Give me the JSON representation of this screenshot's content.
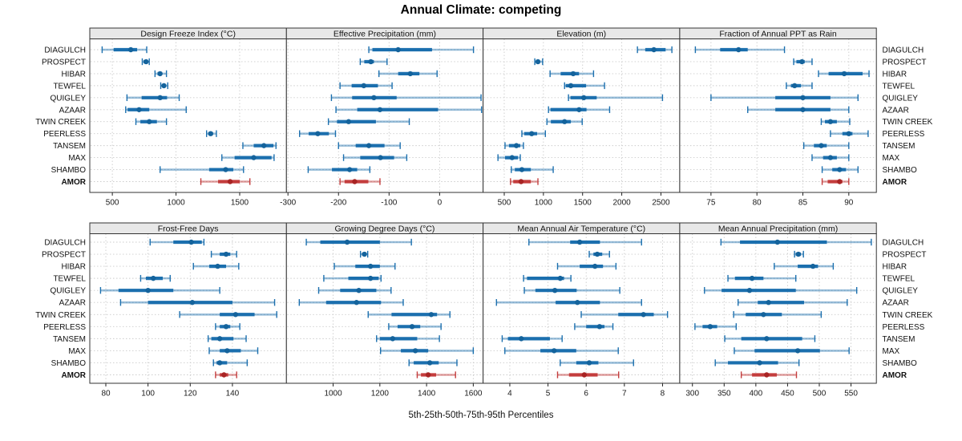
{
  "title": "Annual Climate: competing",
  "caption": "5th-25th-50th-75th-95th Percentiles",
  "chart_data": {
    "type": "percentile-dot-whisker",
    "layout": "2 rows x 4 columns, shared site axis",
    "percentiles": [
      5,
      25,
      50,
      75,
      95
    ],
    "sites": [
      "DIAGULCH",
      "PROSPECT",
      "HIBAR",
      "TEWFEL",
      "QUIGLEY",
      "AZAAR",
      "TWIN CREEK",
      "PEERLESS",
      "TANSEM",
      "MAX",
      "SHAMBO",
      "AMOR"
    ],
    "highlight_site": "AMOR",
    "colors": {
      "series": "#1b6fae",
      "series_band": "rgba(27,111,174,0.45)",
      "series_dot": "#14639c",
      "highlight": "#c43d3d",
      "highlight_band": "rgba(196,61,61,0.5)",
      "highlight_dot": "#a82424",
      "strip_bg": "#e8e8e8",
      "panel_border": "#333333",
      "gridline": "#cccccc"
    },
    "panels": [
      {
        "label": "Design Freeze Index (°C)",
        "row": "top",
        "ticks": [
          500,
          1000,
          1500
        ],
        "xlim": [
          323,
          1867
        ],
        "data": {
          "DIAGULCH": [
            420,
            510,
            645,
            695,
            770
          ],
          "PROSPECT": [
            735,
            745,
            765,
            775,
            790
          ],
          "HIBAR": [
            835,
            855,
            875,
            890,
            925
          ],
          "TEWFEL": [
            880,
            895,
            905,
            915,
            935
          ],
          "QUIGLEY": [
            615,
            730,
            875,
            930,
            1025
          ],
          "AZAAR": [
            605,
            620,
            710,
            790,
            1080
          ],
          "TWIN CREEK": [
            685,
            720,
            790,
            850,
            925
          ],
          "PEERLESS": [
            1240,
            1255,
            1272,
            1290,
            1317
          ],
          "TANSEM": [
            1525,
            1610,
            1690,
            1765,
            1785
          ],
          "MAX": [
            1360,
            1460,
            1610,
            1750,
            1770
          ],
          "SHAMBO": [
            875,
            1260,
            1390,
            1450,
            1530
          ],
          "AMOR": [
            1195,
            1330,
            1425,
            1500,
            1580
          ]
        }
      },
      {
        "label": "Effective Precipitation (mm)",
        "row": "top",
        "ticks": [
          -300,
          -200,
          -100,
          0
        ],
        "xlim": [
          -303,
          86
        ],
        "data": {
          "DIAGULCH": [
            -140,
            -133,
            -82,
            -15,
            67
          ],
          "PROSPECT": [
            -157,
            -149,
            -136,
            -130,
            -104
          ],
          "HIBAR": [
            -120,
            -82,
            -58,
            -40,
            -5
          ],
          "TEWFEL": [
            -197,
            -174,
            -150,
            -122,
            -94
          ],
          "QUIGLEY": [
            -214,
            -173,
            -130,
            -85,
            82
          ],
          "AZAAR": [
            -205,
            -163,
            -118,
            -3,
            83
          ],
          "TWIN CREEK": [
            -220,
            -203,
            -180,
            -126,
            -60
          ],
          "PEERLESS": [
            -277,
            -259,
            -241,
            -219,
            -206
          ],
          "TANSEM": [
            -200,
            -166,
            -140,
            -109,
            -78
          ],
          "MAX": [
            -190,
            -157,
            -117,
            -90,
            -65
          ],
          "SHAMBO": [
            -260,
            -213,
            -178,
            -163,
            -138
          ],
          "AMOR": [
            -197,
            -188,
            -168,
            -141,
            -118
          ]
        }
      },
      {
        "label": "Elevation (m)",
        "row": "top",
        "ticks": [
          500,
          1000,
          1500,
          2000,
          2500
        ],
        "xlim": [
          230,
          2740
        ],
        "data": {
          "DIAGULCH": [
            2200,
            2300,
            2410,
            2560,
            2640
          ],
          "PROSPECT": [
            890,
            905,
            930,
            950,
            990
          ],
          "HIBAR": [
            1085,
            1220,
            1380,
            1455,
            1640
          ],
          "TEWFEL": [
            1270,
            1285,
            1350,
            1545,
            1780
          ],
          "QUIGLEY": [
            1320,
            1345,
            1515,
            1680,
            2520
          ],
          "AZAAR": [
            1065,
            1090,
            1455,
            1550,
            1845
          ],
          "TWIN CREEK": [
            1045,
            1095,
            1270,
            1350,
            1495
          ],
          "PEERLESS": [
            725,
            755,
            850,
            920,
            1025
          ],
          "TANSEM": [
            510,
            560,
            655,
            705,
            745
          ],
          "MAX": [
            420,
            510,
            600,
            675,
            705
          ],
          "SHAMBO": [
            590,
            635,
            725,
            840,
            1125
          ],
          "AMOR": [
            580,
            615,
            715,
            840,
            930
          ]
        }
      },
      {
        "label": "Fraction of Annual PPT as Rain",
        "row": "top",
        "ticks": [
          75,
          80,
          85,
          90
        ],
        "xlim": [
          71.6,
          93
        ],
        "data": {
          "DIAGULCH": [
            73.3,
            76,
            78,
            79,
            83
          ],
          "PROSPECT": [
            84,
            84.3,
            84.9,
            85.2,
            86
          ],
          "HIBAR": [
            86.7,
            87.8,
            89.5,
            91.5,
            92.2
          ],
          "TEWFEL": [
            83.2,
            83.7,
            84.1,
            84.8,
            86
          ],
          "QUIGLEY": [
            75,
            82,
            85,
            88,
            91
          ],
          "AZAAR": [
            79,
            82,
            85,
            88,
            90
          ],
          "TWIN CREEK": [
            87,
            87.4,
            88,
            88.7,
            90.1
          ],
          "PEERLESS": [
            88,
            89.3,
            90,
            90.4,
            92.1
          ],
          "TANSEM": [
            85.1,
            86.2,
            87,
            87.6,
            90
          ],
          "MAX": [
            86,
            87.2,
            88,
            88.7,
            90
          ],
          "SHAMBO": [
            87.1,
            88.2,
            89,
            89.7,
            91
          ],
          "AMOR": [
            87.1,
            87.7,
            89,
            89.3,
            90
          ]
        }
      },
      {
        "label": "Frost-Free Days",
        "row": "bottom",
        "ticks": [
          80,
          100,
          120,
          140
        ],
        "xlim": [
          72.4,
          165.6
        ],
        "data": {
          "DIAGULCH": [
            101,
            112,
            120.5,
            125.5,
            126.5
          ],
          "PROSPECT": [
            130,
            134,
            137,
            139,
            142
          ],
          "HIBAR": [
            121.5,
            129,
            133,
            137,
            143
          ],
          "TEWFEL": [
            96.5,
            99,
            102.5,
            107,
            110.5
          ],
          "QUIGLEY": [
            77.5,
            86,
            100,
            112,
            134
          ],
          "AZAAR": [
            87,
            100,
            121,
            140,
            160
          ],
          "TWIN CREEK": [
            115,
            134,
            141.5,
            150.5,
            161
          ],
          "PEERLESS": [
            132,
            134,
            137,
            139,
            143.5
          ],
          "TANSEM": [
            128.5,
            130,
            134,
            140.5,
            146.5
          ],
          "MAX": [
            129,
            134,
            137.5,
            144,
            152
          ],
          "SHAMBO": [
            131,
            132.5,
            134,
            137.5,
            147
          ],
          "AMOR": [
            132,
            134,
            136,
            138,
            142
          ]
        }
      },
      {
        "label": "Growing Degree Days (°C)",
        "row": "bottom",
        "ticks": [
          1000,
          1200,
          1400,
          1600
        ],
        "xlim": [
          800,
          1642
        ],
        "data": {
          "DIAGULCH": [
            885,
            945,
            1060,
            1200,
            1335
          ],
          "PROSPECT": [
            1117,
            1124,
            1134,
            1141,
            1148
          ],
          "HIBAR": [
            1005,
            1095,
            1160,
            1200,
            1265
          ],
          "TEWFEL": [
            960,
            1065,
            1160,
            1195,
            1205
          ],
          "QUIGLEY": [
            938,
            1030,
            1110,
            1185,
            1248
          ],
          "AZAAR": [
            855,
            970,
            1100,
            1205,
            1300
          ],
          "TWIN CREEK": [
            1150,
            1250,
            1420,
            1445,
            1500
          ],
          "PEERLESS": [
            1238,
            1276,
            1338,
            1373,
            1462
          ],
          "TANSEM": [
            1186,
            1200,
            1255,
            1360,
            1455
          ],
          "MAX": [
            1203,
            1290,
            1352,
            1407,
            1600
          ],
          "SHAMBO": [
            1325,
            1345,
            1414,
            1452,
            1530
          ],
          "AMOR": [
            1360,
            1376,
            1407,
            1441,
            1524
          ]
        }
      },
      {
        "label": "Mean Annual Air Temperature (°C)",
        "row": "bottom",
        "ticks": [
          4,
          5,
          6,
          7,
          8
        ],
        "xlim": [
          3.3,
          8.45
        ],
        "data": {
          "DIAGULCH": [
            4.5,
            5.58,
            5.83,
            6.36,
            7.45
          ],
          "PROSPECT": [
            6.08,
            6.19,
            6.29,
            6.42,
            6.61
          ],
          "HIBAR": [
            5.25,
            5.83,
            6.23,
            6.44,
            6.78
          ],
          "TEWFEL": [
            4.36,
            4.45,
            5.32,
            5.42,
            5.6
          ],
          "QUIGLEY": [
            4.38,
            4.67,
            5.18,
            5.75,
            6.88
          ],
          "AZAAR": [
            3.65,
            5.2,
            5.77,
            6.36,
            7.45
          ],
          "TWIN CREEK": [
            5.87,
            6.84,
            7.5,
            7.77,
            8.13
          ],
          "PEERLESS": [
            5.7,
            6.0,
            6.35,
            6.48,
            6.7
          ],
          "TANSEM": [
            3.8,
            3.95,
            4.3,
            5.05,
            5.37
          ],
          "MAX": [
            3.87,
            4.8,
            5.16,
            5.74,
            6.84
          ],
          "SHAMBO": [
            5.32,
            5.74,
            6.08,
            6.32,
            7.24
          ],
          "AMOR": [
            5.25,
            5.55,
            5.95,
            6.3,
            6.85
          ]
        }
      },
      {
        "label": "Mean Annual Precipitation (mm)",
        "row": "bottom",
        "ticks": [
          300,
          350,
          400,
          450,
          500,
          550
        ],
        "xlim": [
          280,
          590
        ],
        "data": {
          "DIAGULCH": [
            345,
            375,
            434,
            512,
            582
          ],
          "PROSPECT": [
            461,
            463,
            467,
            471,
            475
          ],
          "HIBAR": [
            429,
            466,
            490,
            498,
            522
          ],
          "TEWFEL": [
            356,
            367,
            394,
            412,
            463
          ],
          "QUIGLEY": [
            319,
            346,
            390,
            463,
            559
          ],
          "AZAAR": [
            372,
            403,
            420,
            476,
            544
          ],
          "TWIN CREEK": [
            365,
            384,
            412,
            441,
            503
          ],
          "PEERLESS": [
            304,
            316,
            328,
            339,
            369
          ],
          "TANSEM": [
            351,
            377,
            417,
            473,
            493
          ],
          "MAX": [
            366,
            398,
            466,
            501,
            547
          ],
          "SHAMBO": [
            336,
            356,
            406,
            435,
            468
          ],
          "AMOR": [
            377,
            394,
            417,
            433,
            464
          ]
        }
      }
    ]
  }
}
